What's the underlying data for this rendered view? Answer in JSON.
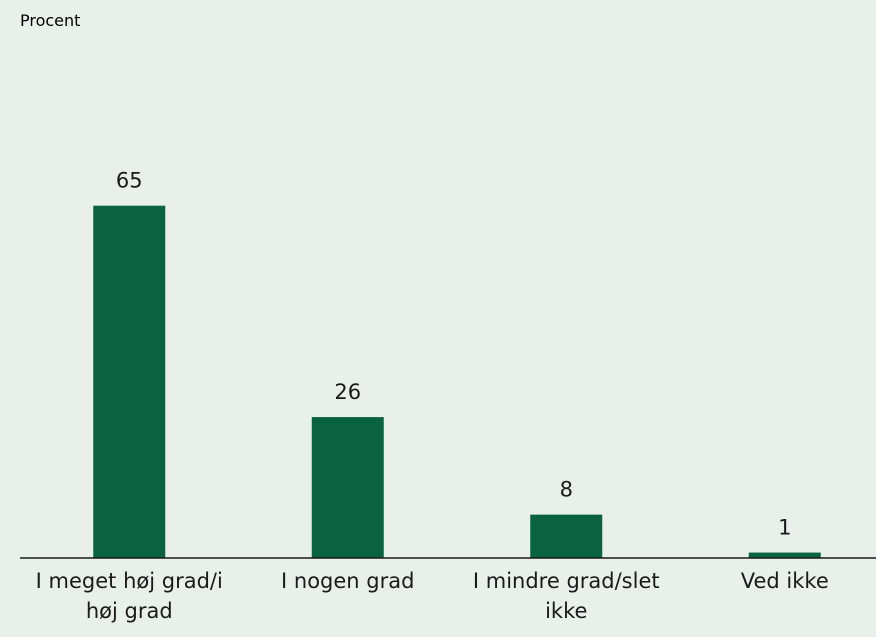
{
  "chart_data": {
    "type": "bar",
    "y_axis_label": "Procent",
    "categories": [
      "I meget høj grad/i høj grad",
      "I nogen grad",
      "I mindre grad/slet ikke",
      "Ved ikke"
    ],
    "values": [
      65,
      26,
      8,
      1
    ],
    "color": "#0a6340",
    "ylim": [
      0,
      100
    ]
  }
}
